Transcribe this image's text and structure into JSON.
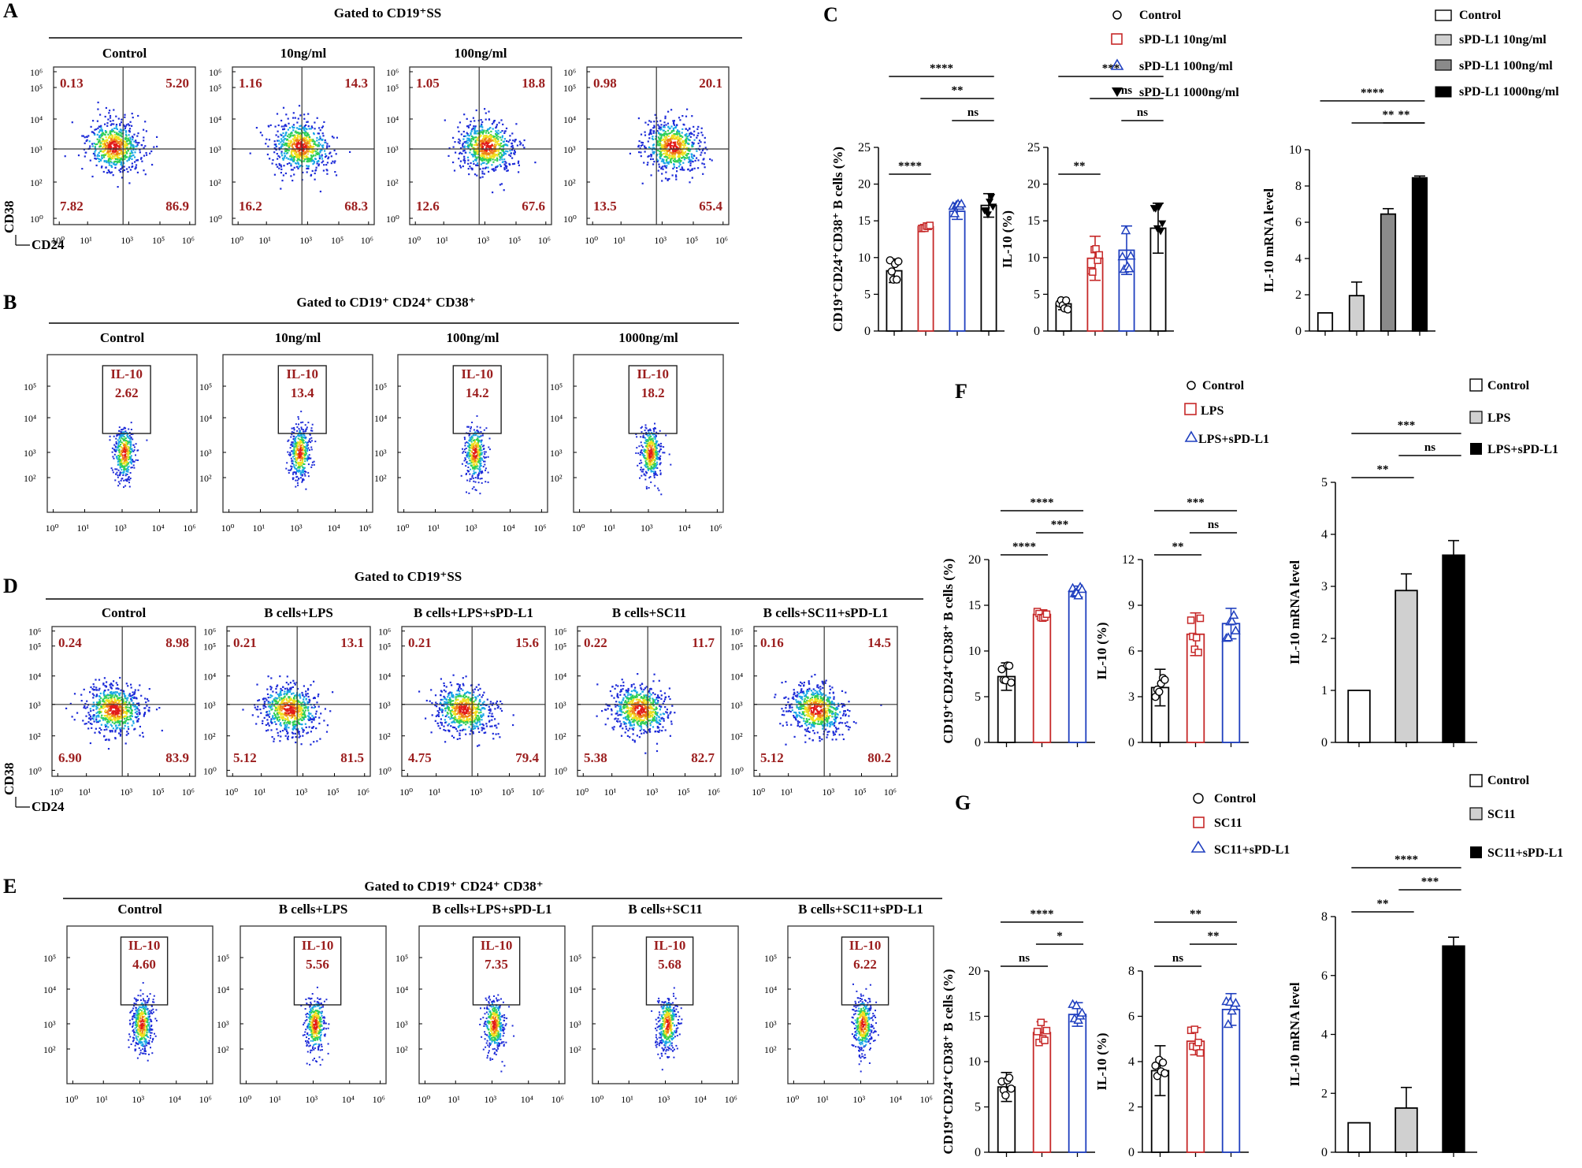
{
  "panel_labels": {
    "a": "A",
    "b": "B",
    "c": "C",
    "d": "D",
    "e": "E",
    "f": "F",
    "g": "G"
  },
  "gates": {
    "a": "Gated to CD19⁺SS",
    "b": "Gated to CD19⁺ CD24⁺ CD38⁺",
    "d": "Gated to CD19⁺SS",
    "e": "Gated to CD19⁺ CD24⁺ CD38⁺"
  },
  "axes": {
    "cd38": "CD38",
    "cd24": "CD24",
    "il10_gate": "IL-10"
  },
  "ticks": {
    "e0": "10⁰",
    "e1": "10¹",
    "e2": "10²",
    "e3": "10³",
    "e4": "10⁴",
    "e5": "10⁵",
    "e6": "10⁶"
  },
  "panel_a": {
    "titles": [
      "Control",
      "10ng/ml",
      "100ng/ml",
      ""
    ],
    "quads": [
      [
        "0.13",
        "5.20",
        "7.82",
        "86.9"
      ],
      [
        "1.16",
        "14.3",
        "16.2",
        "68.3"
      ],
      [
        "1.05",
        "18.8",
        "12.6",
        "67.6"
      ],
      [
        "0.98",
        "20.1",
        "13.5",
        "65.4"
      ]
    ]
  },
  "panel_b": {
    "titles": [
      "Control",
      "10ng/ml",
      "100ng/ml",
      "1000ng/ml"
    ],
    "values": [
      "2.62",
      "13.4",
      "14.2",
      "18.2"
    ]
  },
  "panel_d": {
    "titles": [
      "Control",
      "B cells+LPS",
      "B cells+LPS+sPD-L1",
      "B cells+SC11",
      "B cells+SC11+sPD-L1"
    ],
    "quads": [
      [
        "0.24",
        "8.98",
        "6.90",
        "83.9"
      ],
      [
        "0.21",
        "13.1",
        "5.12",
        "81.5"
      ],
      [
        "0.21",
        "15.6",
        "4.75",
        "79.4"
      ],
      [
        "0.22",
        "11.7",
        "5.38",
        "82.7"
      ],
      [
        "0.16",
        "14.5",
        "5.12",
        "80.2"
      ]
    ]
  },
  "panel_e": {
    "titles": [
      "Control",
      "B cells+LPS",
      "B cells+LPS+sPD-L1",
      "B cells+SC11",
      "B cells+SC11+sPD-L1"
    ],
    "values": [
      "4.60",
      "5.56",
      "7.35",
      "5.68",
      "6.22"
    ]
  },
  "colors": {
    "control": "#000000",
    "red": "#c62828",
    "blue": "#1f3fbf",
    "dark": "#000000",
    "grey_light": "#d0d0d0",
    "grey_mid": "#8a8a8a",
    "black": "#000000",
    "gate_value": "#9b1d1d"
  },
  "legends": {
    "c_dots": [
      "Control",
      "sPD-L1 10ng/ml",
      "sPD-L1 100ng/ml",
      "sPD-L1 1000ng/ml"
    ],
    "c_bars": [
      "Control",
      "sPD-L1 10ng/ml",
      "sPD-L1 100ng/ml",
      "sPD-L1 1000ng/ml"
    ],
    "f_dots": [
      "Control",
      "LPS",
      "LPS+sPD-L1"
    ],
    "f_bars": [
      "Control",
      "LPS",
      "LPS+sPD-L1"
    ],
    "g_dots": [
      "Control",
      "SC11",
      "SC11+sPD-L1"
    ],
    "g_bars": [
      "Control",
      "SC11",
      "SC11+sPD-L1"
    ]
  },
  "chart_data": [
    {
      "id": "C1",
      "type": "bar",
      "ylabel": "CD19⁺CD24⁺CD38⁺ B cells (%)",
      "categories": [
        "Control",
        "sPD-L1 10ng/ml",
        "sPD-L1 100ng/ml",
        "sPD-L1 1000ng/ml"
      ],
      "values": [
        8.2,
        14.2,
        16.3,
        17.1
      ],
      "errors": [
        1.6,
        0.3,
        1.1,
        1.6
      ],
      "ylim": [
        0,
        25
      ],
      "yticks": [
        "0",
        "5",
        "10",
        "15",
        "20",
        "25"
      ],
      "sig": [
        {
          "from": 0,
          "to": 1,
          "label": "****"
        },
        {
          "from": 0,
          "to": 3,
          "label": "****"
        },
        {
          "from": 1,
          "to": 3,
          "label": "**"
        },
        {
          "from": 2,
          "to": 3,
          "label": "ns"
        }
      ]
    },
    {
      "id": "C2",
      "type": "bar",
      "ylabel": "IL-10 (%)",
      "categories": [
        "Control",
        "sPD-L1 10ng/ml",
        "sPD-L1 100ng/ml",
        "sPD-L1 1000ng/ml"
      ],
      "values": [
        3.7,
        9.9,
        11.0,
        14.0
      ],
      "errors": [
        0.8,
        3.0,
        3.3,
        3.4
      ],
      "ylim": [
        0,
        25
      ],
      "yticks": [
        "0",
        "5",
        "10",
        "15",
        "20",
        "25"
      ],
      "sig": [
        {
          "from": 0,
          "to": 1,
          "label": "**"
        },
        {
          "from": 0,
          "to": 3,
          "label": "***"
        },
        {
          "from": 1,
          "to": 3,
          "label": "ns"
        },
        {
          "from": 2,
          "to": 3,
          "label": "ns"
        }
      ]
    },
    {
      "id": "C3",
      "type": "bar",
      "ylabel": "IL-10 mRNA level",
      "categories": [
        "Control",
        "sPD-L1 10ng/ml",
        "sPD-L1 100ng/ml",
        "sPD-L1 1000ng/ml"
      ],
      "values": [
        1.0,
        1.95,
        6.45,
        8.45
      ],
      "errors": [
        0,
        0.75,
        0.3,
        0.1
      ],
      "ylim": [
        0,
        10
      ],
      "yticks": [
        "0",
        "2",
        "4",
        "6",
        "8",
        "10"
      ],
      "sig": [
        {
          "from": 0,
          "to": 3,
          "label": "****"
        },
        {
          "from": 1,
          "to": 3,
          "label": "**"
        },
        {
          "from": 2,
          "to": 3,
          "label": "**"
        }
      ]
    },
    {
      "id": "F1",
      "type": "bar",
      "ylabel": "CD19⁺CD24⁺CD38⁺ B cells (%)",
      "categories": [
        "Control",
        "LPS",
        "LPS+sPD-L1"
      ],
      "values": [
        7.2,
        14.0,
        16.5
      ],
      "errors": [
        1.5,
        0.5,
        0.6
      ],
      "ylim": [
        0,
        20
      ],
      "yticks": [
        "0",
        "5",
        "10",
        "15",
        "20"
      ],
      "sig": [
        {
          "from": 0,
          "to": 1,
          "label": "****"
        },
        {
          "from": 0,
          "to": 2,
          "label": "****"
        },
        {
          "from": 1,
          "to": 2,
          "label": "***"
        }
      ]
    },
    {
      "id": "F2",
      "type": "bar",
      "ylabel": "IL-10 (%)",
      "categories": [
        "Control",
        "LPS",
        "LPS+sPD-L1"
      ],
      "values": [
        3.6,
        7.1,
        7.8
      ],
      "errors": [
        1.2,
        1.4,
        1.0
      ],
      "ylim": [
        0,
        12
      ],
      "yticks": [
        "0",
        "3",
        "6",
        "9",
        "12"
      ],
      "sig": [
        {
          "from": 0,
          "to": 1,
          "label": "**"
        },
        {
          "from": 0,
          "to": 2,
          "label": "***"
        },
        {
          "from": 1,
          "to": 2,
          "label": "ns"
        }
      ]
    },
    {
      "id": "F3",
      "type": "bar",
      "ylabel": "IL-10 mRNA level",
      "categories": [
        "Control",
        "LPS",
        "LPS+sPD-L1"
      ],
      "values": [
        1.0,
        2.92,
        3.6
      ],
      "errors": [
        0,
        0.32,
        0.28
      ],
      "ylim": [
        0,
        5
      ],
      "yticks": [
        "0",
        "1",
        "2",
        "3",
        "4",
        "5"
      ],
      "sig": [
        {
          "from": 0,
          "to": 1,
          "label": "**"
        },
        {
          "from": 0,
          "to": 2,
          "label": "***"
        },
        {
          "from": 1,
          "to": 2,
          "label": "ns"
        }
      ]
    },
    {
      "id": "G1",
      "type": "bar",
      "ylabel": "CD19⁺CD24⁺CD38⁺ B cells (%)",
      "categories": [
        "Control",
        "SC11",
        "SC11+sPD-L1"
      ],
      "values": [
        7.2,
        13.2,
        15.2
      ],
      "errors": [
        1.6,
        1.2,
        1.3
      ],
      "ylim": [
        0,
        20
      ],
      "yticks": [
        "0",
        "5",
        "10",
        "15",
        "20"
      ],
      "sig": [
        {
          "from": 0,
          "to": 1,
          "label": "ns"
        },
        {
          "from": 0,
          "to": 2,
          "label": "****"
        },
        {
          "from": 1,
          "to": 2,
          "label": "*"
        }
      ]
    },
    {
      "id": "G2",
      "type": "bar",
      "ylabel": "IL-10 (%)",
      "categories": [
        "Control",
        "SC11",
        "SC11+sPD-L1"
      ],
      "values": [
        3.6,
        4.9,
        6.3
      ],
      "errors": [
        1.1,
        0.6,
        0.7
      ],
      "ylim": [
        0,
        8
      ],
      "yticks": [
        "0",
        "2",
        "4",
        "6",
        "8"
      ],
      "sig": [
        {
          "from": 0,
          "to": 1,
          "label": "ns"
        },
        {
          "from": 0,
          "to": 2,
          "label": "**"
        },
        {
          "from": 1,
          "to": 2,
          "label": "**"
        }
      ]
    },
    {
      "id": "G3",
      "type": "bar",
      "ylabel": "IL-10 mRNA level",
      "categories": [
        "Control",
        "SC11",
        "SC11+sPD-L1"
      ],
      "values": [
        1.0,
        1.5,
        7.0
      ],
      "errors": [
        0,
        0.7,
        0.3
      ],
      "ylim": [
        0,
        8
      ],
      "yticks": [
        "0",
        "2",
        "4",
        "6",
        "8"
      ],
      "sig": [
        {
          "from": 0,
          "to": 1,
          "label": "**"
        },
        {
          "from": 0,
          "to": 2,
          "label": "****"
        },
        {
          "from": 1,
          "to": 2,
          "label": "***"
        }
      ]
    }
  ]
}
